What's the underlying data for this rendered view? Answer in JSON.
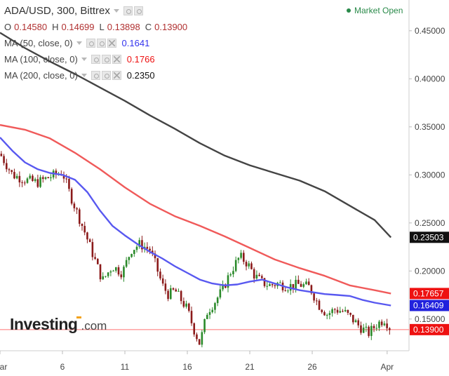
{
  "header": {
    "symbol_line": "ADA/USD, 300, Bittrex",
    "ohlc": {
      "o_label": "O",
      "o": "0.14580",
      "h_label": "H",
      "h": "0.14699",
      "l_label": "L",
      "l": "0.13898",
      "c_label": "C",
      "c": "0.13900"
    },
    "market_status": "Market Open"
  },
  "indicators": [
    {
      "label": "MA (50, close, 0)",
      "value": "0.1641",
      "color": "#3333ee"
    },
    {
      "label": "MA (100, close, 0)",
      "value": "0.1766",
      "color": "#ee1111"
    },
    {
      "label": "MA (200, close, 0)",
      "value": "0.2350",
      "color": "#111111"
    }
  ],
  "logo": {
    "name": "Investing",
    "tld": ".com"
  },
  "colors": {
    "up": "#2a8a2a",
    "down": "#8b1a1a",
    "ma50": "#5858f0",
    "ma100": "#f05a5a",
    "ma200": "#444444",
    "price_line": "#ff7070"
  },
  "chart_data": {
    "type": "candlestick",
    "y_ticks": [
      "0.45000",
      "0.40000",
      "0.35000",
      "0.30000",
      "0.25000",
      "0.20000",
      "0.15000"
    ],
    "y_tick_values": [
      0.45,
      0.4,
      0.35,
      0.3,
      0.25,
      0.2,
      0.15
    ],
    "ylim": [
      0.117,
      0.482
    ],
    "x_ticks": [
      "Mar",
      "6",
      "11",
      "16",
      "21",
      "26",
      "Apr"
    ],
    "x_tick_days": [
      1,
      6,
      11,
      16,
      21,
      26,
      32
    ],
    "xlim": [
      1.0,
      33.75
    ],
    "price_labels": [
      {
        "text": "0.23503",
        "value": 0.23503,
        "bg": "#111111"
      },
      {
        "text": "0.17657",
        "value": 0.17657,
        "bg": "#ee1111"
      },
      {
        "text": "0.16409",
        "value": 0.16409,
        "bg": "#2222dd"
      },
      {
        "text": "0.13900",
        "value": 0.139,
        "bg": "#ee1111"
      }
    ],
    "series": [
      {
        "name": "MA (200, close, 0)",
        "points": [
          [
            1.0,
            0.448
          ],
          [
            3.0,
            0.432
          ],
          [
            5.0,
            0.418
          ],
          [
            7.0,
            0.405
          ],
          [
            9.0,
            0.391
          ],
          [
            11.0,
            0.377
          ],
          [
            13.0,
            0.362
          ],
          [
            15.0,
            0.348
          ],
          [
            17.0,
            0.333
          ],
          [
            19.0,
            0.32
          ],
          [
            21.0,
            0.31
          ],
          [
            23.0,
            0.302
          ],
          [
            25.0,
            0.294
          ],
          [
            27.0,
            0.283
          ],
          [
            29.0,
            0.268
          ],
          [
            31.0,
            0.253
          ],
          [
            32.3,
            0.235
          ]
        ]
      },
      {
        "name": "MA (100, close, 0)",
        "points": [
          [
            1.0,
            0.352
          ],
          [
            3.0,
            0.347
          ],
          [
            5.0,
            0.338
          ],
          [
            7.0,
            0.323
          ],
          [
            9.0,
            0.306
          ],
          [
            11.0,
            0.287
          ],
          [
            13.0,
            0.27
          ],
          [
            15.0,
            0.257
          ],
          [
            17.0,
            0.247
          ],
          [
            19.0,
            0.236
          ],
          [
            21.0,
            0.224
          ],
          [
            23.0,
            0.212
          ],
          [
            25.0,
            0.203
          ],
          [
            27.0,
            0.195
          ],
          [
            29.0,
            0.185
          ],
          [
            31.0,
            0.18
          ],
          [
            32.3,
            0.1766
          ]
        ]
      },
      {
        "name": "MA (50, close, 0)",
        "points": [
          [
            1.0,
            0.339
          ],
          [
            2.0,
            0.325
          ],
          [
            3.0,
            0.313
          ],
          [
            4.0,
            0.306
          ],
          [
            5.0,
            0.302
          ],
          [
            6.0,
            0.3
          ],
          [
            7.0,
            0.295
          ],
          [
            8.0,
            0.282
          ],
          [
            9.0,
            0.263
          ],
          [
            10.0,
            0.247
          ],
          [
            11.0,
            0.237
          ],
          [
            12.0,
            0.228
          ],
          [
            13.0,
            0.22
          ],
          [
            14.0,
            0.213
          ],
          [
            15.0,
            0.205
          ],
          [
            16.0,
            0.198
          ],
          [
            17.0,
            0.191
          ],
          [
            18.0,
            0.187
          ],
          [
            19.0,
            0.185
          ],
          [
            20.0,
            0.186
          ],
          [
            21.0,
            0.189
          ],
          [
            22.0,
            0.191
          ],
          [
            23.0,
            0.187
          ],
          [
            24.0,
            0.183
          ],
          [
            25.0,
            0.18
          ],
          [
            26.0,
            0.178
          ],
          [
            27.0,
            0.176
          ],
          [
            28.0,
            0.175
          ],
          [
            29.0,
            0.174
          ],
          [
            30.0,
            0.17
          ],
          [
            31.0,
            0.167
          ],
          [
            32.3,
            0.1641
          ]
        ]
      }
    ],
    "close_path": [
      [
        1.0,
        0.322
      ],
      [
        2.0,
        0.3
      ],
      [
        3.0,
        0.295
      ],
      [
        4.0,
        0.292
      ],
      [
        5.0,
        0.298
      ],
      [
        6.0,
        0.303
      ],
      [
        6.6,
        0.28
      ],
      [
        7.2,
        0.26
      ],
      [
        7.8,
        0.24
      ],
      [
        8.5,
        0.215
      ],
      [
        9.2,
        0.19
      ],
      [
        10.0,
        0.205
      ],
      [
        10.8,
        0.198
      ],
      [
        11.5,
        0.222
      ],
      [
        12.2,
        0.228
      ],
      [
        13.0,
        0.222
      ],
      [
        13.5,
        0.205
      ],
      [
        14.0,
        0.185
      ],
      [
        14.5,
        0.175
      ],
      [
        15.0,
        0.18
      ],
      [
        15.5,
        0.17
      ],
      [
        16.0,
        0.16
      ],
      [
        16.5,
        0.14
      ],
      [
        17.0,
        0.124
      ],
      [
        17.6,
        0.158
      ],
      [
        18.2,
        0.168
      ],
      [
        18.8,
        0.18
      ],
      [
        19.5,
        0.2
      ],
      [
        20.2,
        0.215
      ],
      [
        20.8,
        0.208
      ],
      [
        21.4,
        0.195
      ],
      [
        22.0,
        0.188
      ],
      [
        22.6,
        0.185
      ],
      [
        23.2,
        0.187
      ],
      [
        24.0,
        0.184
      ],
      [
        25.0,
        0.186
      ],
      [
        25.8,
        0.183
      ],
      [
        26.5,
        0.165
      ],
      [
        27.2,
        0.155
      ],
      [
        27.8,
        0.16
      ],
      [
        28.5,
        0.158
      ],
      [
        29.2,
        0.15
      ],
      [
        29.8,
        0.142
      ],
      [
        30.5,
        0.135
      ],
      [
        31.2,
        0.145
      ],
      [
        31.8,
        0.15
      ],
      [
        32.3,
        0.139
      ]
    ]
  }
}
